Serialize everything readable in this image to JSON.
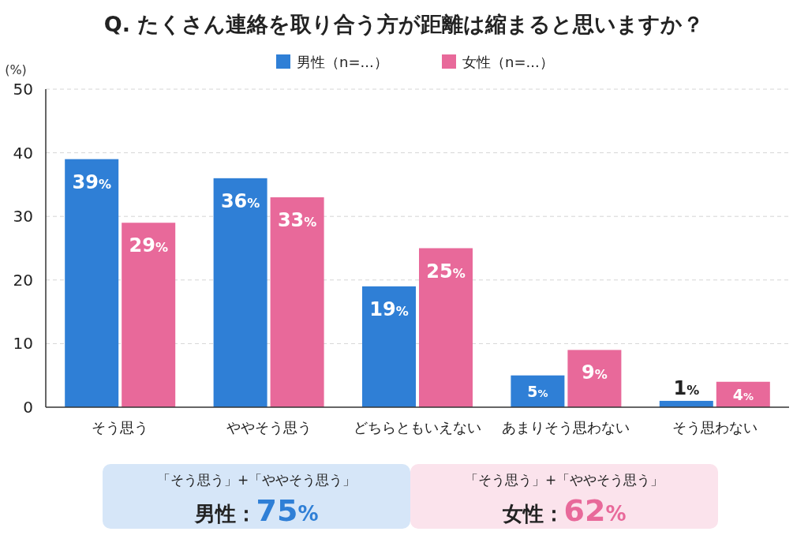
{
  "chart_data": {
    "type": "bar",
    "title": "Q. たくさん連絡を取り合う方が距離は縮まると思いますか？",
    "ylabel": "(%)",
    "categories": [
      "そう思う",
      "ややそう思う",
      "どちらともいえない",
      "あまりそう思わない",
      "そう思わない"
    ],
    "series": [
      {
        "name": "男性（n=...）",
        "color": "#2f7fd6",
        "values": [
          39,
          36,
          19,
          5,
          1
        ],
        "value_labels": [
          "39%",
          "36%",
          "19%",
          "5%",
          "1%"
        ]
      },
      {
        "name": "女性（n=...）",
        "color": "#e8699a",
        "values": [
          29,
          33,
          25,
          9,
          4
        ],
        "value_labels": [
          "29%",
          "33%",
          "25%",
          "9%",
          "4%"
        ]
      }
    ],
    "ylim": [
      0,
      50
    ],
    "yticks": [
      0,
      10,
      20,
      30,
      40,
      50
    ],
    "grid": "y",
    "legend": "top",
    "annotations": [
      "「そう思う」+「ややそう思う」",
      "男性：75%",
      "「そう思う」+「ややそう思う」",
      "女性：62%"
    ]
  }
}
